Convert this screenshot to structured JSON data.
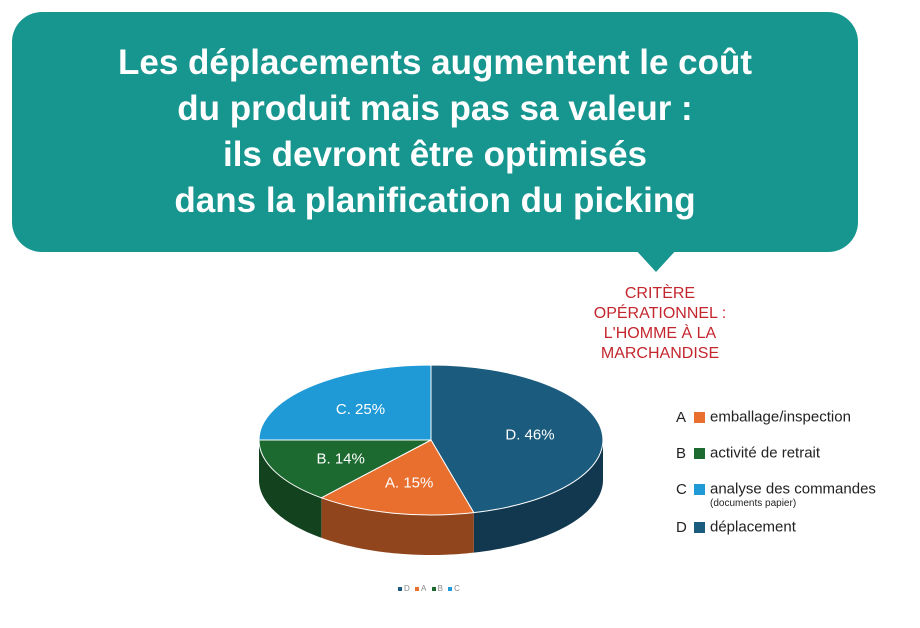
{
  "headline": {
    "lines": [
      "Les déplacements augmentent le coût",
      "du produit mais pas sa valeur :",
      "ils devront être optimisés",
      "dans la planification du picking"
    ]
  },
  "criterion": {
    "lines": [
      "CRITÈRE",
      "OPÉRATIONNEL :",
      "L'HOMME À LA",
      "MARCHANDISE"
    ]
  },
  "colors": {
    "bubble": "#17958f",
    "criterion_text": "#c4262e",
    "A": "#e86f2e",
    "B": "#1d6a30",
    "C": "#1f9ad6",
    "D": "#1b5b7e"
  },
  "chart_data": {
    "type": "pie",
    "style": "3d",
    "slices": [
      {
        "key": "D",
        "label": "D. 46%",
        "value": 46
      },
      {
        "key": "A",
        "label": "A. 15%",
        "value": 15
      },
      {
        "key": "B",
        "label": "B. 14%",
        "value": 14
      },
      {
        "key": "C",
        "label": "C. 25%",
        "value": 25
      }
    ],
    "legend": [
      {
        "letter": "A",
        "label": "emballage/inspection"
      },
      {
        "letter": "B",
        "label": "activité de retrait"
      },
      {
        "letter": "C",
        "label": "analyse des commandes",
        "sublabel": "(documents papier)"
      },
      {
        "letter": "D",
        "label": "déplacement"
      }
    ],
    "mini_legend": [
      "D",
      "A",
      "B",
      "C"
    ]
  }
}
